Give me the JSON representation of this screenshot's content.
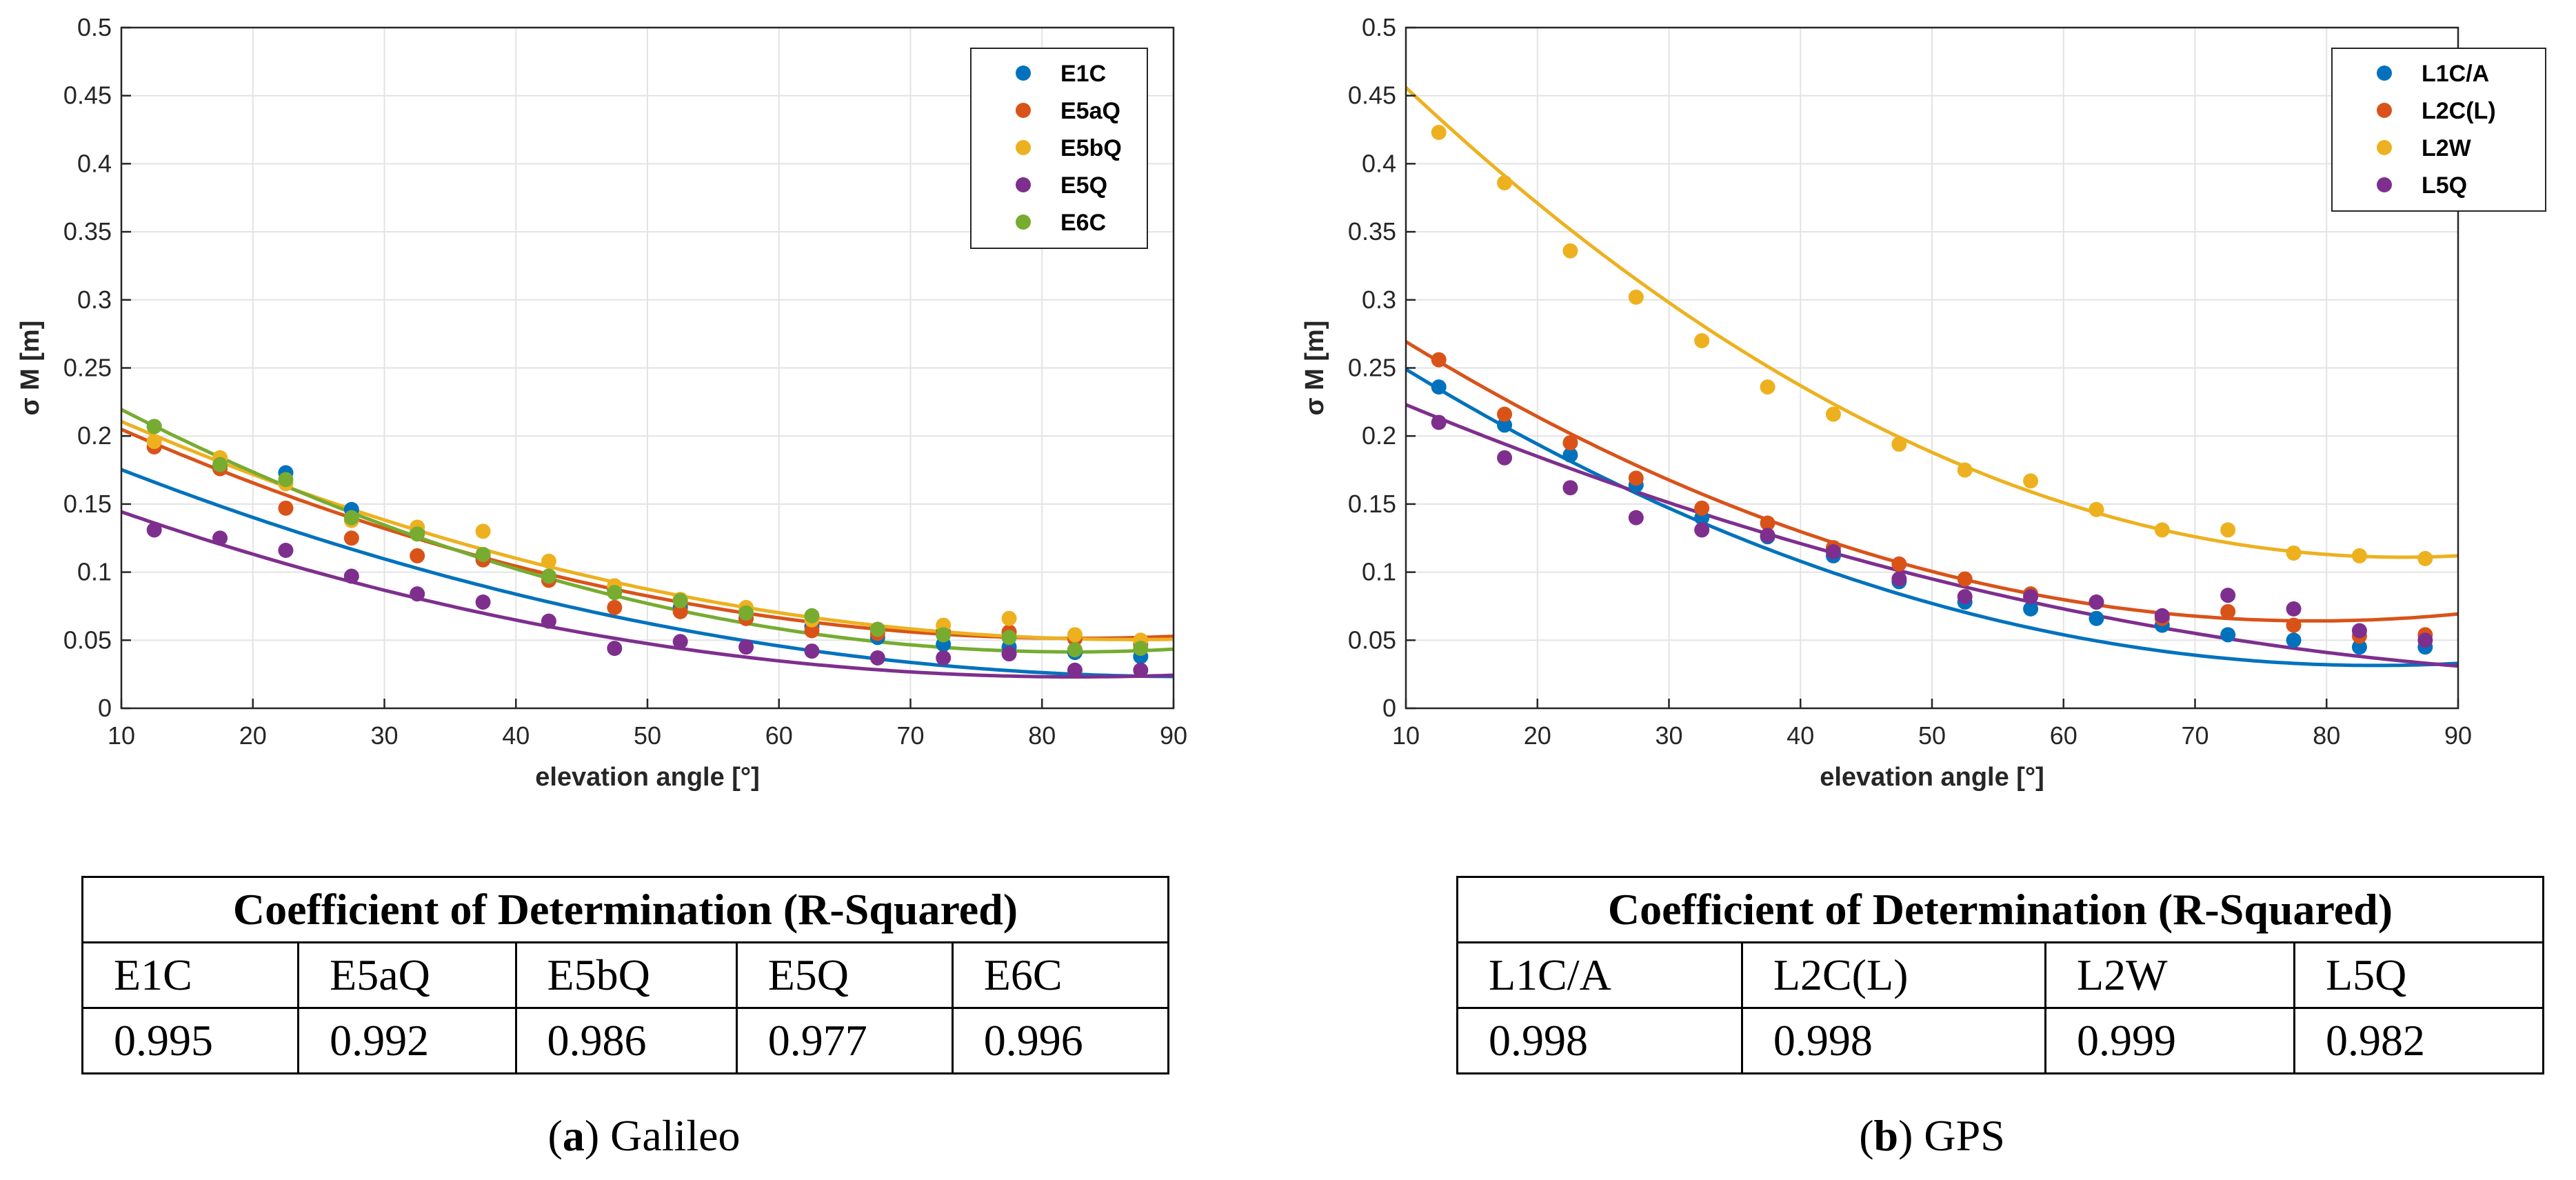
{
  "colors": {
    "blue": "#0072BD",
    "orange": "#D95319",
    "yellow": "#EDB120",
    "purple": "#7E2F8E",
    "green": "#77AC30"
  },
  "chart_data": [
    {
      "type": "scatter",
      "panel": "a",
      "title": "",
      "xlabel": "elevation angle [°]",
      "ylabel": "σ M [m]",
      "xlim": [
        10,
        90
      ],
      "ylim": [
        0,
        0.5
      ],
      "xticks": [
        "10",
        "20",
        "30",
        "40",
        "50",
        "60",
        "70",
        "80",
        "90"
      ],
      "yticks": [
        "0",
        "0.05",
        "0.1",
        "0.15",
        "0.2",
        "0.25",
        "0.3",
        "0.35",
        "0.4",
        "0.45",
        "0.5"
      ],
      "grid": true,
      "legend_position": "top-right",
      "x": [
        12.5,
        17.5,
        22.5,
        27.5,
        32.5,
        37.5,
        42.5,
        47.5,
        52.5,
        57.5,
        62.5,
        67.5,
        72.5,
        77.5,
        82.5,
        87.5
      ],
      "series": [
        {
          "name": "E1C",
          "color": "blue",
          "values": [
            0.207,
            0.178,
            0.173,
            0.146,
            0.129,
            0.112,
            0.097,
            0.086,
            0.074,
            0.066,
            0.06,
            0.052,
            0.047,
            0.045,
            0.041,
            0.038
          ],
          "fit": [
            0.215,
            -0.0042,
            2.3e-05
          ]
        },
        {
          "name": "E5aQ",
          "color": "orange",
          "values": [
            0.192,
            0.176,
            0.147,
            0.125,
            0.112,
            0.109,
            0.094,
            0.074,
            0.071,
            0.066,
            0.057,
            0.055,
            0.056,
            0.056,
            0.051,
            0.047
          ],
          "fit": [
            0.25,
            -0.0048,
            2.9e-05
          ]
        },
        {
          "name": "E5bQ",
          "color": "yellow",
          "values": [
            0.196,
            0.184,
            0.165,
            0.138,
            0.133,
            0.13,
            0.108,
            0.09,
            0.08,
            0.074,
            0.065,
            0.058,
            0.061,
            0.066,
            0.054,
            0.05
          ],
          "fit": [
            0.255,
            -0.0047,
            2.7e-05
          ]
        },
        {
          "name": "E5Q",
          "color": "purple",
          "values": [
            0.131,
            0.125,
            0.116,
            0.097,
            0.084,
            0.078,
            0.064,
            0.044,
            0.049,
            0.045,
            0.042,
            0.037,
            0.037,
            0.04,
            0.028,
            0.028
          ],
          "fit": [
            0.18,
            -0.0038,
            2.3e-05
          ]
        },
        {
          "name": "E6C",
          "color": "green",
          "values": [
            0.207,
            0.179,
            0.168,
            0.14,
            0.128,
            0.113,
            0.097,
            0.085,
            0.079,
            0.07,
            0.068,
            0.058,
            0.054,
            0.052,
            0.043,
            0.044
          ],
          "fit": [
            0.272,
            -0.0056,
            3.4e-05
          ]
        }
      ]
    },
    {
      "type": "scatter",
      "panel": "b",
      "title": "",
      "xlabel": "elevation angle [°]",
      "ylabel": "σ M [m]",
      "xlim": [
        10,
        90
      ],
      "ylim": [
        0,
        0.5
      ],
      "xticks": [
        "10",
        "20",
        "30",
        "40",
        "50",
        "60",
        "70",
        "80",
        "90"
      ],
      "yticks": [
        "0",
        "0.05",
        "0.1",
        "0.15",
        "0.2",
        "0.25",
        "0.3",
        "0.35",
        "0.4",
        "0.45",
        "0.5"
      ],
      "grid": true,
      "legend_position": "top-right",
      "x": [
        12.5,
        17.5,
        22.5,
        27.5,
        32.5,
        37.5,
        42.5,
        47.5,
        52.5,
        57.5,
        62.5,
        67.5,
        72.5,
        77.5,
        82.5,
        87.5
      ],
      "series": [
        {
          "name": "L1C/A",
          "color": "blue",
          "values": [
            0.236,
            0.208,
            0.186,
            0.164,
            0.14,
            0.126,
            0.112,
            0.093,
            0.078,
            0.073,
            0.066,
            0.061,
            0.054,
            0.05,
            0.045,
            0.045
          ],
          "fit": [
            0.312,
            -0.0067,
            4e-05
          ]
        },
        {
          "name": "L2C(L)",
          "color": "orange",
          "values": [
            0.256,
            0.216,
            0.195,
            0.169,
            0.147,
            0.136,
            0.118,
            0.106,
            0.095,
            0.084,
            0.078,
            0.066,
            0.071,
            0.061,
            0.053,
            0.054
          ],
          "fit": [
            0.333,
            -0.0068,
            4.3e-05
          ]
        },
        {
          "name": "L2W",
          "color": "yellow",
          "values": [
            0.423,
            0.386,
            0.336,
            0.302,
            0.27,
            0.236,
            0.216,
            0.194,
            0.175,
            0.167,
            0.146,
            0.131,
            0.131,
            0.114,
            0.112,
            0.11
          ],
          "fit": [
            0.553,
            -0.0103,
            6e-05
          ]
        },
        {
          "name": "L5Q",
          "color": "purple",
          "values": [
            0.21,
            0.184,
            0.162,
            0.14,
            0.131,
            0.127,
            0.115,
            0.095,
            0.082,
            0.082,
            0.078,
            0.068,
            0.083,
            0.073,
            0.057,
            0.05
          ],
          "fit": [
            0.265,
            -0.0044,
            2e-05
          ]
        }
      ]
    }
  ],
  "tables": [
    {
      "title": "Coefficient of Determination (R-Squared)",
      "headers": [
        "E1C",
        "E5aQ",
        "E5bQ",
        "E5Q",
        "E6C"
      ],
      "values": [
        "0.995",
        "0.992",
        "0.986",
        "0.977",
        "0.996"
      ]
    },
    {
      "title": "Coefficient of Determination (R-Squared)",
      "headers": [
        "L1C/A",
        "L2C(L)",
        "L2W",
        "L5Q"
      ],
      "values": [
        "0.998",
        "0.998",
        "0.999",
        "0.982"
      ]
    }
  ],
  "captions": [
    {
      "letter": "a",
      "open": "(",
      "close": ")",
      "text": " Galileo"
    },
    {
      "letter": "b",
      "open": "(",
      "close": ")",
      "text": " GPS"
    }
  ]
}
